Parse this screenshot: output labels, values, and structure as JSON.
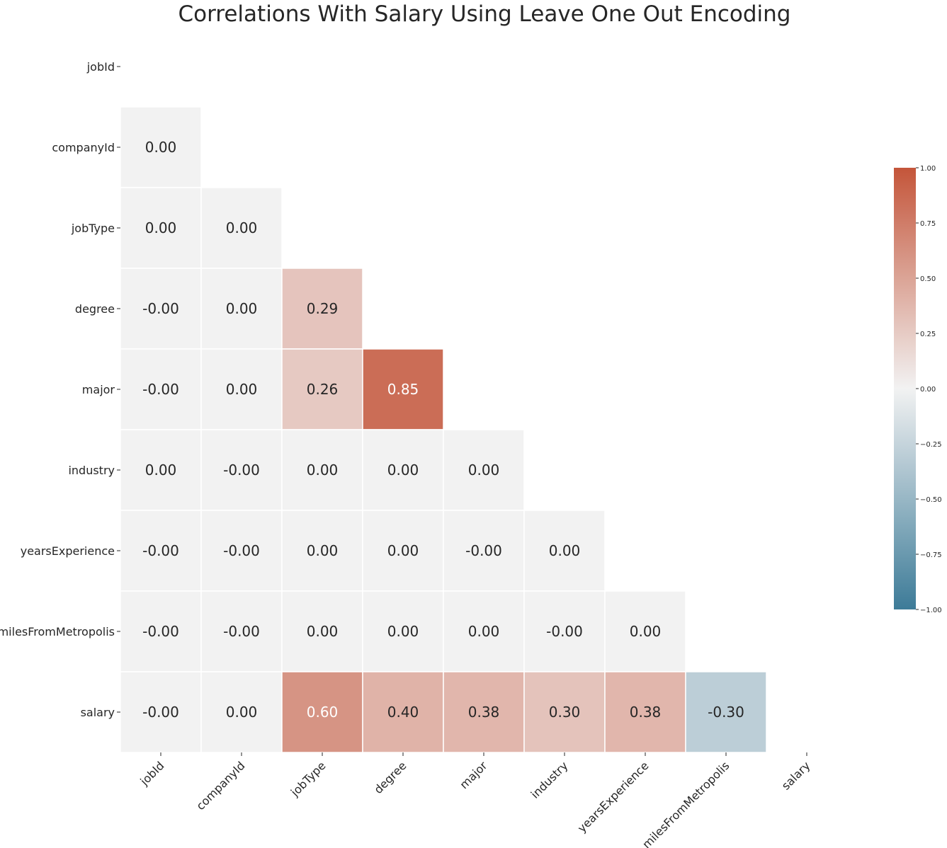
{
  "chart_data": {
    "type": "heatmap",
    "title": "Correlations With Salary Using Leave One Out Encoding",
    "xlabel": "",
    "ylabel": "",
    "row_labels": [
      "jobId",
      "companyId",
      "jobType",
      "degree",
      "major",
      "industry",
      "yearsExperience",
      "milesFromMetropolis",
      "salary"
    ],
    "col_labels": [
      "jobId",
      "companyId",
      "jobType",
      "degree",
      "major",
      "industry",
      "yearsExperience",
      "milesFromMetropolis",
      "salary"
    ],
    "mask": "upper-triangle-including-diagonal",
    "value_range": [
      -1.0,
      1.0
    ],
    "cells": [
      [
        null,
        null,
        null,
        null,
        null,
        null,
        null,
        null,
        null
      ],
      [
        "0.00",
        null,
        null,
        null,
        null,
        null,
        null,
        null,
        null
      ],
      [
        "0.00",
        "0.00",
        null,
        null,
        null,
        null,
        null,
        null,
        null
      ],
      [
        "-0.00",
        "0.00",
        "0.29",
        null,
        null,
        null,
        null,
        null,
        null
      ],
      [
        "-0.00",
        "0.00",
        "0.26",
        "0.85",
        null,
        null,
        null,
        null,
        null
      ],
      [
        "0.00",
        "-0.00",
        "0.00",
        "0.00",
        "0.00",
        null,
        null,
        null,
        null
      ],
      [
        "-0.00",
        "-0.00",
        "0.00",
        "0.00",
        "-0.00",
        "0.00",
        null,
        null,
        null
      ],
      [
        "-0.00",
        "-0.00",
        "0.00",
        "0.00",
        "0.00",
        "-0.00",
        "0.00",
        null,
        null
      ],
      [
        "-0.00",
        "0.00",
        "0.60",
        "0.40",
        "0.38",
        "0.30",
        "0.38",
        "-0.30",
        null
      ]
    ],
    "colorbar": {
      "ticks": [
        "1.00",
        "0.75",
        "0.50",
        "0.25",
        "0.00",
        "−0.25",
        "−0.50",
        "−0.75",
        "−1.00"
      ],
      "tick_values": [
        1.0,
        0.75,
        0.5,
        0.25,
        0.0,
        -0.25,
        -0.5,
        -0.75,
        -1.0
      ],
      "colors": {
        "negative_end": "#3d7b98",
        "center": "#f2f2f2",
        "positive_end": "#c4553a"
      }
    },
    "legend": "colorbar-right"
  }
}
